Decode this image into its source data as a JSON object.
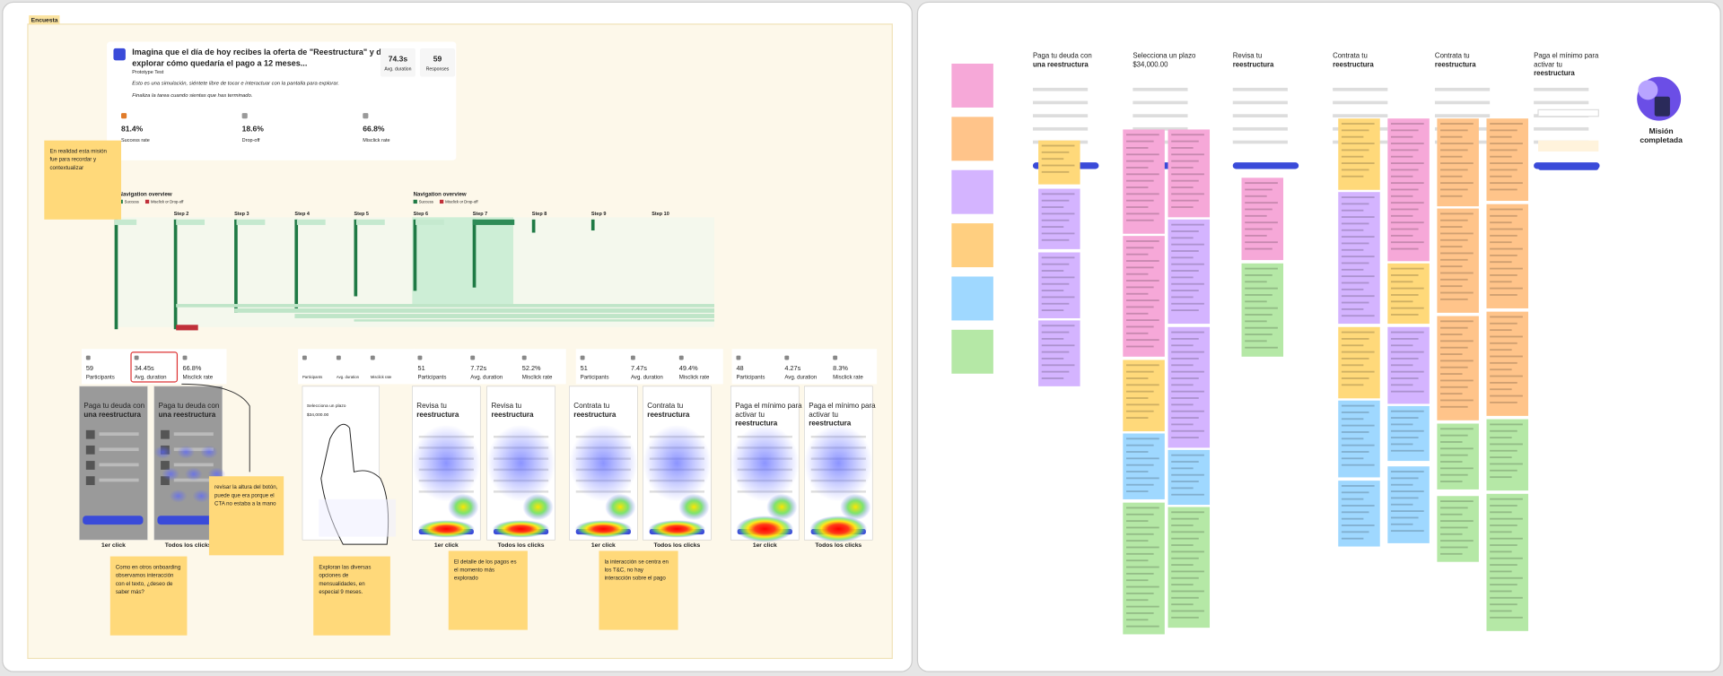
{
  "board": {
    "frame_label": "Encuesta",
    "summary": {
      "title_lines": [
        "Imagina que el día de hoy recibes la oferta de \"Reestructura\" y deseas",
        "explorar cómo quedaría el pago a 12 meses..."
      ],
      "subtitle": "Prototype Test",
      "intro": "Esto es una simulación, siéntete libre de tocar e interactuar con la pantalla para explorar.",
      "instruction": "Finaliza la tarea cuando sientas que has terminado.",
      "stats": [
        {
          "value": "74.3s",
          "label": "Avg. duration"
        },
        {
          "value": "59",
          "label": "Responses"
        }
      ],
      "metrics": [
        {
          "value": "81.4%",
          "label": "Success rate"
        },
        {
          "value": "18.6%",
          "label": "Drop-off"
        },
        {
          "value": "66.8%",
          "label": "Misclick rate"
        }
      ]
    },
    "navigation": {
      "titles": [
        "Navigation overview",
        "Navigation overview"
      ],
      "legend": [
        "Success",
        "Misclick or Drop-off"
      ],
      "steps": [
        "Step 2",
        "Step 3",
        "Step 4",
        "Step 5",
        "Step 6",
        "Step 7",
        "Step 8",
        "Step 9",
        "Step 10"
      ]
    },
    "notes": [
      {
        "lines": [
          "En realidad esta misión",
          "fue para recordar y",
          "contextualizar"
        ]
      },
      {
        "lines": [
          "revisar la altura del botón,",
          "puede que era porque el",
          "CTA no estaba a la mano"
        ]
      },
      {
        "lines": [
          "Como en otros onboarding",
          "observamos interacción",
          "con el texto, ¿deseo de",
          "saber más?"
        ]
      },
      {
        "lines": [
          "Exploran las diversas",
          "opciones de",
          "mensualidades, en",
          "especial 9 meses."
        ]
      },
      {
        "lines": [
          "El detalle de los pagos es",
          "el momento más",
          "explorado"
        ]
      },
      {
        "lines": [
          "la interacción se centra en",
          "los T&C, no hay",
          "interacción sobre el pago"
        ]
      }
    ],
    "tests": [
      {
        "stats": [
          {
            "value": "59",
            "label": "Participants"
          },
          {
            "value": "34.45s",
            "label": "Avg. duration"
          },
          {
            "value": "66.8%",
            "label": "Misclick rate"
          }
        ],
        "phones": [
          {
            "title_lines": [
              "Paga tu deuda con",
              "una reestructura"
            ]
          },
          {
            "title_lines": [
              "Paga tu deuda con",
              "una reestructura"
            ]
          }
        ],
        "captions": [
          "1er click",
          "Todos los clicks"
        ]
      },
      {
        "stats": [
          {
            "label": "Participants"
          },
          {
            "label": "Avg. duration"
          },
          {
            "label": "Misclick rate"
          }
        ],
        "phones": [
          {
            "title_lines": [
              "Selecciona un plazo",
              "$34,000.00"
            ]
          },
          {
            "title_lines": [
              "Selecciona un plazo",
              "$34,000.00"
            ]
          }
        ]
      },
      {
        "stats": [
          {
            "value": "51",
            "label": "Participants"
          },
          {
            "value": "7.72s",
            "label": "Avg. duration"
          },
          {
            "value": "52.2%",
            "label": "Misclick rate"
          }
        ],
        "phones": [
          {
            "title_lines": [
              "Revisa tu",
              "reestructura"
            ]
          },
          {
            "title_lines": [
              "Revisa tu",
              "reestructura"
            ]
          }
        ],
        "captions": [
          "1er click",
          "Todos los clicks"
        ]
      },
      {
        "stats": [
          {
            "value": "51",
            "label": "Participants"
          },
          {
            "value": "7.47s",
            "label": "Avg. duration"
          },
          {
            "value": "49.4%",
            "label": "Misclick rate"
          }
        ],
        "phones": [
          {
            "title_lines": [
              "Contrata tu",
              "reestructura"
            ]
          },
          {
            "title_lines": [
              "Contrata tu",
              "reestructura"
            ]
          }
        ],
        "captions": [
          "1er click",
          "Todos los clicks"
        ]
      },
      {
        "stats": [
          {
            "value": "48",
            "label": "Participants"
          },
          {
            "value": "4.27s",
            "label": "Avg. duration"
          },
          {
            "value": "8.3%",
            "label": "Misclick rate"
          }
        ],
        "phones": [
          {
            "title_lines": [
              "Paga el mínimo para",
              "activar tu",
              "reestructura"
            ]
          },
          {
            "title_lines": [
              "Paga el mínimo para",
              "activar tu",
              "reestructura"
            ]
          }
        ],
        "captions": [
          "1er click",
          "Todos los clicks"
        ]
      }
    ],
    "screens": [
      {
        "title_lines": [
          "Paga tu deuda con",
          "una reestructura"
        ]
      },
      {
        "title_lines": [
          "Selecciona un plazo",
          "$34,000.00"
        ]
      },
      {
        "title_lines": [
          "Revisa tu",
          "reestructura"
        ]
      },
      {
        "title_lines": [
          "Contrata tu",
          "reestructura"
        ]
      },
      {
        "title_lines": [
          "Contrata tu",
          "reestructura"
        ]
      },
      {
        "title_lines": [
          "Paga el mínimo para",
          "activar tu",
          "reestructura"
        ]
      }
    ],
    "completion": {
      "title_lines": [
        "Misión",
        "completada"
      ]
    }
  }
}
